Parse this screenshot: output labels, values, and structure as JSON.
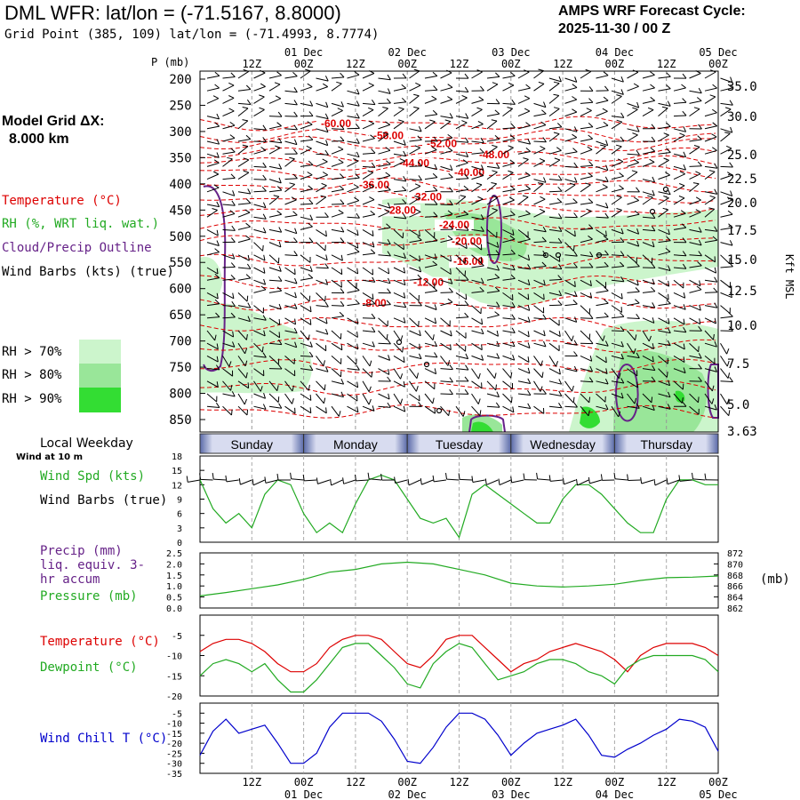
{
  "header": {
    "title": "DML WFR:  lat/lon = (-71.5167, 8.8000)",
    "grid_point": "Grid Point (385, 109) lat/lon = (-71.4993, 8.7774)",
    "cycle_label": "AMPS WRF Forecast Cycle:",
    "cycle_value": "2025-11-30 / 00  Z",
    "model_grid_label": "Model Grid ΔX:",
    "model_grid_value": "8.000 km"
  },
  "colors": {
    "temperature": "#dd0000",
    "rh": "#22aa22",
    "cloud": "#662288",
    "barb": "#000000",
    "wind_chill": "#0000cc",
    "rh70": "#ccf5cc",
    "rh80": "#99e699",
    "rh90": "#33dd33"
  },
  "legend": {
    "temperature": "Temperature (°C)",
    "rh": "RH (%, WRT liq. wat.)",
    "cloud": "Cloud/Precip Outline",
    "wind_barbs": "Wind Barbs (kts) (true)",
    "rh70": "RH > 70%",
    "rh80": "RH > 80%",
    "rh90": "RH > 90%"
  },
  "time_axis": {
    "top_dates": [
      "01 Dec",
      "02 Dec",
      "03 Dec",
      "04 Dec",
      "05 Dec"
    ],
    "hour_labels": [
      "12Z",
      "00Z",
      "12Z",
      "00Z",
      "12Z",
      "00Z",
      "12Z",
      "00Z",
      "12Z",
      "00Z"
    ],
    "weekdays": [
      "Sunday",
      "Monday",
      "Tuesday",
      "Wednesday",
      "Thursday"
    ],
    "local_weekday_label": "Local Weekday",
    "wind_10m_label": "Wind at 10 m"
  },
  "chart_data": [
    {
      "type": "heatmap",
      "name": "time-height cross section",
      "y_axis": {
        "label": "P (mb)",
        "ticks": [
          200,
          250,
          300,
          350,
          400,
          450,
          500,
          550,
          600,
          650,
          700,
          750,
          800,
          850
        ]
      },
      "y_axis_right": {
        "label": "Kft MSL",
        "ticks": [
          "35.0",
          "30.0",
          "25.0",
          "22.5",
          "20.0",
          "17.5",
          "15.0",
          "12.5",
          "10.0",
          "7.5",
          "5.0",
          "3.63"
        ]
      },
      "temperature_contour_labels": [
        "-60.00",
        "-56.00",
        "-52.00",
        "-48.00",
        "-44.00",
        "-40.00",
        "-36.00",
        "-32.00",
        "-28.00",
        "-24.00",
        "-20.00",
        "-16.00",
        "-12.00",
        "-8.00"
      ],
      "temperature_contour_levels": [
        -60,
        -56,
        -52,
        -48,
        -44,
        -40,
        -36,
        -32,
        -28,
        -24,
        -20,
        -16,
        -12,
        -8
      ],
      "temperature_contour_pressure": [
        285,
        308,
        323,
        344,
        360,
        378,
        402,
        425,
        450,
        478,
        510,
        548,
        588,
        628,
        668,
        708,
        748,
        790,
        835
      ],
      "temperature_contour_label_pressure": [
        285,
        308,
        323,
        344,
        360,
        378,
        402,
        425,
        450,
        478,
        510,
        548,
        588,
        628
      ]
    },
    {
      "type": "line",
      "name": "10 m wind speed",
      "ylabel": "Wind Spd (kts)",
      "barbs_label": "Wind Barbs (true)",
      "y_ticks": [
        0,
        3,
        6,
        9,
        12,
        15,
        18
      ],
      "ylim": [
        0,
        18
      ],
      "series": [
        {
          "name": "Wind Spd (kts)",
          "color": "#22aa22",
          "x_hours": [
            0,
            3,
            6,
            9,
            12,
            15,
            18,
            21,
            24,
            27,
            30,
            33,
            36,
            39,
            42,
            45,
            48,
            51,
            54,
            57,
            60,
            63,
            66,
            69,
            72,
            75,
            78,
            81,
            84,
            87,
            90,
            93,
            96,
            99,
            102,
            105,
            108,
            111,
            114,
            117,
            120
          ],
          "values": [
            13,
            7,
            4,
            6,
            3,
            10,
            13,
            12,
            6,
            2,
            4,
            2,
            8,
            13,
            14,
            13,
            9,
            5,
            4,
            5,
            1,
            10,
            12,
            10,
            8,
            6,
            4,
            4,
            9,
            12,
            12,
            10,
            7,
            4,
            2,
            2,
            9,
            13,
            13,
            12,
            12
          ]
        }
      ]
    },
    {
      "type": "line",
      "name": "Precip and pressure",
      "ylabel": "Precip (mm) liq. equiv. 3-hr accum",
      "ylabel2": "Pressure (mb)",
      "y_ticks": [
        "0.0",
        "0.5",
        "1.0",
        "1.5",
        "2.0",
        "2.5"
      ],
      "y2_ticks": [
        862,
        864,
        866,
        868,
        870,
        872
      ],
      "y2_unit": "(mb)",
      "ylim": [
        0,
        2.5
      ],
      "y2lim": [
        862,
        872
      ],
      "series": [
        {
          "name": "Pressure (mb)",
          "color": "#22aa22",
          "x_hours": [
            0,
            6,
            12,
            18,
            24,
            30,
            36,
            42,
            48,
            54,
            60,
            66,
            72,
            78,
            84,
            90,
            96,
            102,
            108,
            114,
            120
          ],
          "values": [
            864.2,
            864.8,
            865.5,
            866.2,
            867.2,
            868.5,
            869.0,
            870.0,
            870.3,
            870.0,
            869.0,
            868.0,
            866.5,
            866.0,
            865.8,
            866.0,
            866.3,
            867.0,
            867.5,
            867.6,
            867.8
          ]
        },
        {
          "name": "Precip (mm)",
          "color": "#662288",
          "x_hours": [],
          "values": []
        }
      ]
    },
    {
      "type": "line",
      "name": "Temperature and dewpoint",
      "y_ticks": [
        -5,
        -10,
        -15,
        -20
      ],
      "ylim": [
        -20,
        0
      ],
      "series": [
        {
          "name": "Temperature (°C)",
          "color": "#dd0000",
          "x_hours": [
            0,
            3,
            6,
            9,
            12,
            15,
            18,
            21,
            24,
            27,
            30,
            33,
            36,
            39,
            42,
            45,
            48,
            51,
            54,
            57,
            60,
            63,
            66,
            69,
            72,
            75,
            78,
            81,
            84,
            87,
            90,
            93,
            96,
            99,
            102,
            105,
            108,
            111,
            114,
            117,
            120
          ],
          "values": [
            -9,
            -7,
            -6,
            -6,
            -7,
            -9,
            -12,
            -14,
            -14,
            -12,
            -8,
            -6,
            -5,
            -5,
            -6,
            -9,
            -12,
            -13,
            -10,
            -6,
            -5,
            -5,
            -8,
            -11,
            -14,
            -12,
            -11,
            -9,
            -8,
            -7,
            -8,
            -9,
            -11,
            -14,
            -10,
            -8,
            -7,
            -7,
            -7,
            -8,
            -10
          ]
        },
        {
          "name": "Dewpoint (°C)",
          "color": "#22aa22",
          "x_hours": [
            0,
            3,
            6,
            9,
            12,
            15,
            18,
            21,
            24,
            27,
            30,
            33,
            36,
            39,
            42,
            45,
            48,
            51,
            54,
            57,
            60,
            63,
            66,
            69,
            72,
            75,
            78,
            81,
            84,
            87,
            90,
            93,
            96,
            99,
            102,
            105,
            108,
            111,
            114,
            117,
            120
          ],
          "values": [
            -15,
            -12,
            -11,
            -12,
            -14,
            -12,
            -16,
            -19,
            -19,
            -16,
            -12,
            -8,
            -7,
            -7,
            -10,
            -13,
            -17,
            -18,
            -12,
            -9,
            -7,
            -8,
            -12,
            -16,
            -15,
            -14,
            -12,
            -11,
            -11,
            -12,
            -14,
            -15,
            -17,
            -13,
            -11,
            -10,
            -10,
            -10,
            -10,
            -11,
            -14
          ]
        }
      ]
    },
    {
      "type": "line",
      "name": "Wind chill",
      "ylabel": "Wind Chill T (°C)",
      "y_ticks": [
        -5,
        -10,
        -15,
        -20,
        -25,
        -30,
        -35
      ],
      "ylim": [
        -35,
        0
      ],
      "series": [
        {
          "name": "Wind Chill T (°C)",
          "color": "#0000cc",
          "x_hours": [
            0,
            3,
            6,
            9,
            12,
            15,
            18,
            21,
            24,
            27,
            30,
            33,
            36,
            39,
            42,
            45,
            48,
            51,
            54,
            57,
            60,
            63,
            66,
            69,
            72,
            75,
            78,
            81,
            84,
            87,
            90,
            93,
            96,
            99,
            102,
            105,
            108,
            111,
            114,
            117,
            120
          ],
          "values": [
            -26,
            -14,
            -8,
            -15,
            -13,
            -11,
            -20,
            -30,
            -30,
            -25,
            -12,
            -5,
            -5,
            -5,
            -9,
            -18,
            -29,
            -30,
            -22,
            -12,
            -5,
            -5,
            -8,
            -16,
            -26,
            -20,
            -15,
            -13,
            -11,
            -8,
            -16,
            -26,
            -27,
            -23,
            -20,
            -16,
            -13,
            -8,
            -9,
            -12,
            -24
          ]
        }
      ]
    }
  ]
}
